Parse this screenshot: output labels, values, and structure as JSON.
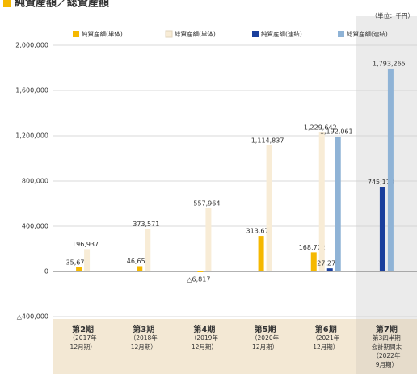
{
  "chart_data": {
    "type": "bar",
    "title": "純資産額／総資産額",
    "unit": "（単位：千円）",
    "categories": [
      [
        "第2期",
        "（2017年",
        "12月期）"
      ],
      [
        "第3期",
        "（2018年",
        "12月期）"
      ],
      [
        "第4期",
        "（2019年",
        "12月期）"
      ],
      [
        "第5期",
        "（2020年",
        "12月期）"
      ],
      [
        "第6期",
        "（2021年",
        "12月期）"
      ],
      [
        "第7期",
        "第3四半期",
        "会計期間末",
        "（2022年",
        "9月期）"
      ]
    ],
    "series": [
      {
        "name": "純資産額(単体)",
        "color": "#f5b800",
        "values": [
          35675,
          46659,
          -6817,
          313672,
          168702,
          null
        ],
        "value_labels": [
          "35,675",
          "46,659",
          "△6,817",
          "313,672",
          "168,702",
          null
        ]
      },
      {
        "name": "総資産額(単体)",
        "color": "#f8ecd6",
        "values": [
          196937,
          373571,
          557964,
          1114837,
          1229642,
          null
        ],
        "value_labels": [
          "196,937",
          "373,571",
          "557,964",
          "1,114,837",
          "1,229,642",
          null
        ]
      },
      {
        "name": "純資産額(連結)",
        "color": "#1a3f9c",
        "values": [
          null,
          null,
          null,
          null,
          27279,
          745178
        ],
        "value_labels": [
          null,
          null,
          null,
          null,
          "27,279",
          "745,178"
        ]
      },
      {
        "name": "総資産額(連結)",
        "color": "#8fb3d6",
        "values": [
          null,
          null,
          null,
          null,
          1192061,
          1793265
        ],
        "value_labels": [
          null,
          null,
          null,
          null,
          "1,192,061",
          "1,793,265"
        ]
      }
    ],
    "ylim": [
      -400000,
      2000000
    ],
    "yticks": [
      {
        "value": -400000,
        "label": "△400,000"
      },
      0,
      {
        "value": 400000,
        "label": "400,000"
      },
      {
        "value": 800000,
        "label": "800,000"
      },
      {
        "value": 1200000,
        "label": "1,200,000"
      },
      {
        "value": 1600000,
        "label": "1,600,000"
      },
      {
        "value": 2000000,
        "label": "2,000,000"
      }
    ],
    "grid": true
  }
}
